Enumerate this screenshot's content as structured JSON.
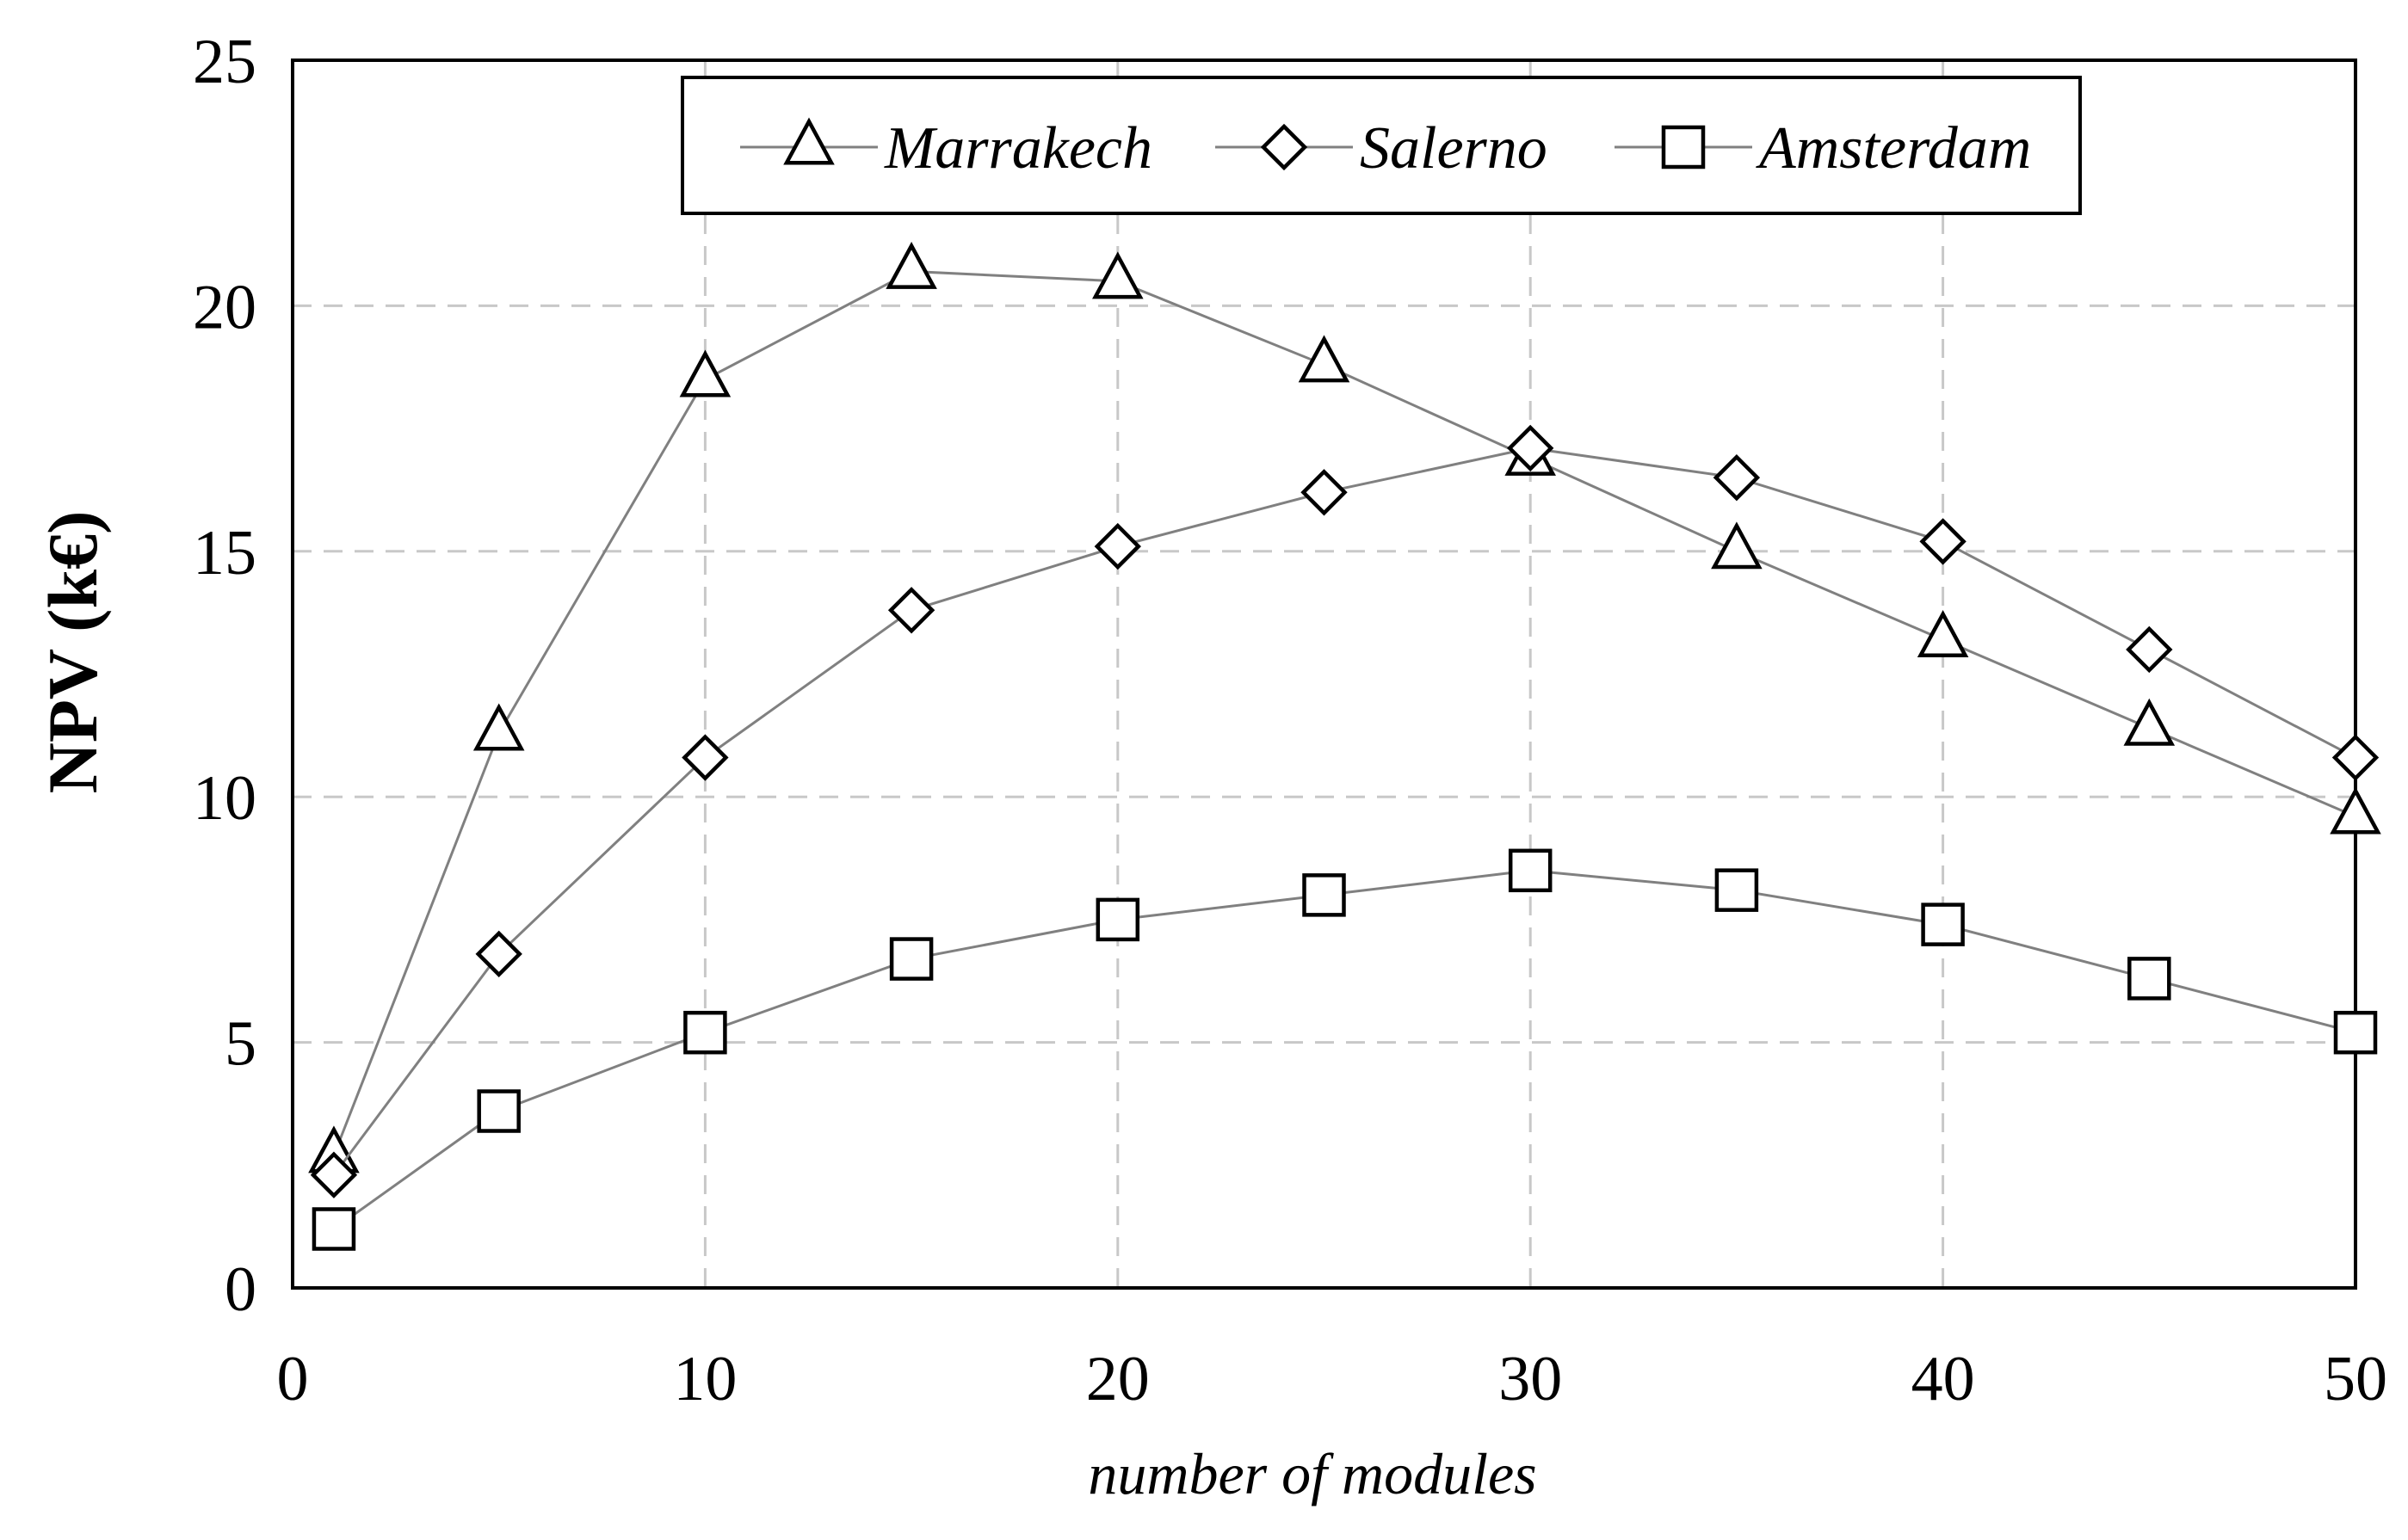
{
  "chart_data": {
    "type": "line",
    "title": "",
    "xlabel": "number of modules",
    "ylabel": "NPV (k€)",
    "xlim": [
      0,
      50
    ],
    "ylim": [
      0,
      25
    ],
    "xticks": [
      0,
      10,
      20,
      30,
      40,
      50
    ],
    "yticks": [
      0,
      5,
      10,
      15,
      20,
      25
    ],
    "grid": true,
    "legend_position": "top",
    "colors": {
      "line": "#808080",
      "marker_stroke": "#000000",
      "marker_fill": "#ffffff",
      "grid": "#c8c8c8",
      "axis": "#000000"
    },
    "x": [
      1,
      5,
      10,
      15,
      20,
      25,
      30,
      35,
      40,
      45,
      50
    ],
    "series": [
      {
        "name": "Marrakech",
        "marker": "triangle",
        "values": [
          2.7,
          11.3,
          18.5,
          20.7,
          20.5,
          18.8,
          16.9,
          15.0,
          13.2,
          11.4,
          9.6
        ]
      },
      {
        "name": "Salerno",
        "marker": "diamond",
        "values": [
          2.3,
          6.8,
          10.8,
          13.8,
          15.1,
          16.2,
          17.1,
          16.5,
          15.2,
          13.0,
          10.8
        ]
      },
      {
        "name": "Amsterdam",
        "marker": "square",
        "values": [
          1.2,
          3.6,
          5.2,
          6.7,
          7.5,
          8.0,
          8.5,
          8.1,
          7.4,
          6.3,
          5.2
        ]
      }
    ]
  }
}
